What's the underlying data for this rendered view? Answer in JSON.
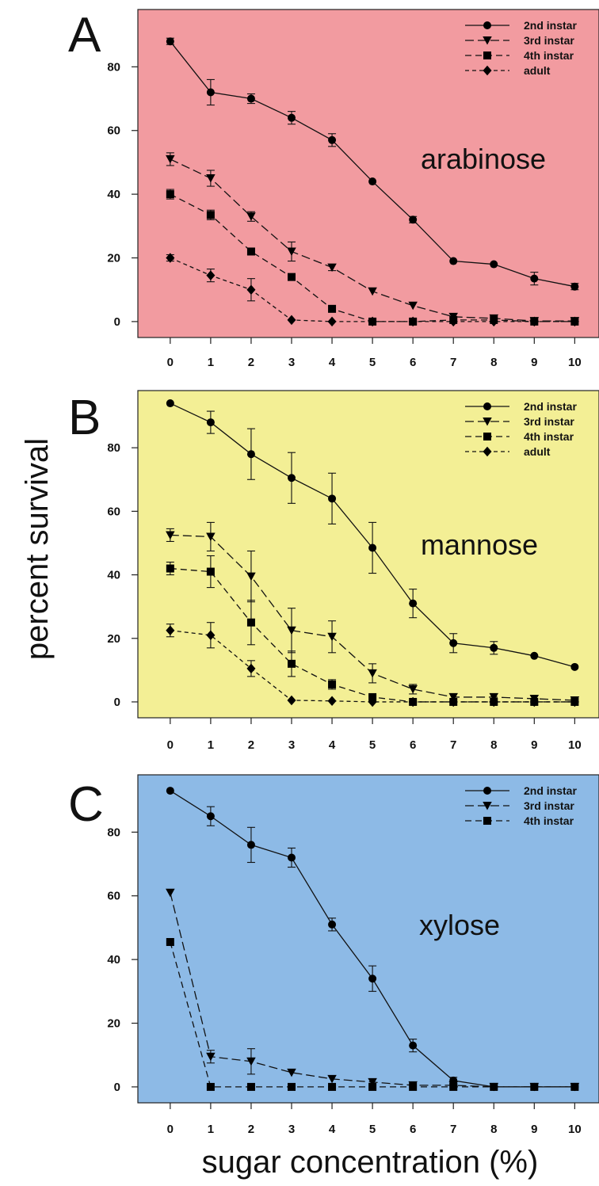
{
  "ylabel": "percent survival",
  "xlabel": "sugar concentration (%)",
  "chart_data": [
    {
      "type": "line",
      "panel": "A",
      "sugar": "arabinose",
      "background": "#f29ba0",
      "x": [
        0,
        1,
        2,
        3,
        4,
        5,
        6,
        7,
        8,
        9,
        10
      ],
      "x_ticks": [
        "0",
        "1",
        "2",
        "3",
        "4",
        "5",
        "6",
        "7",
        "8",
        "9",
        "10"
      ],
      "y_ticks": [
        "0",
        "20",
        "40",
        "60",
        "80"
      ],
      "xlim": [
        -0.8,
        10.6
      ],
      "ylim": [
        -5,
        98
      ],
      "legend_position": "top-right",
      "series": [
        {
          "name": "2nd instar",
          "marker": "circle",
          "dash": "solid",
          "values": [
            88,
            72,
            70,
            64,
            57,
            44,
            32,
            19,
            18,
            13.5,
            11
          ],
          "errors": [
            1,
            4,
            1.5,
            2,
            2,
            0.5,
            1,
            0.5,
            0.5,
            2,
            1
          ]
        },
        {
          "name": "3rd instar",
          "marker": "triangle-down",
          "dash": "long",
          "values": [
            51,
            45,
            33,
            22,
            17,
            9.5,
            5,
            1.5,
            1,
            0.2,
            0.2
          ],
          "errors": [
            2,
            2.5,
            1.5,
            3,
            1,
            0.3,
            0.3,
            0.3,
            0.3,
            0.2,
            0.2
          ]
        },
        {
          "name": "4th instar",
          "marker": "square",
          "dash": "medium",
          "values": [
            40,
            33.5,
            22,
            14,
            4,
            0,
            0,
            0.5,
            0.5,
            0,
            0
          ],
          "errors": [
            1.5,
            1.5,
            1,
            0.5,
            0.5,
            0.2,
            0.2,
            0.2,
            0.2,
            0.2,
            0.2
          ]
        },
        {
          "name": "adult",
          "marker": "diamond",
          "dash": "short",
          "values": [
            20,
            14.5,
            10,
            0.5,
            0,
            0,
            0,
            0,
            0,
            0,
            0
          ],
          "errors": [
            1,
            2,
            3.5,
            0.3,
            0.2,
            0.2,
            0.2,
            0.2,
            0.2,
            0.2,
            0.2
          ]
        }
      ]
    },
    {
      "type": "line",
      "panel": "B",
      "sugar": "mannose",
      "background": "#f3ef95",
      "x": [
        0,
        1,
        2,
        3,
        4,
        5,
        6,
        7,
        8,
        9,
        10
      ],
      "x_ticks": [
        "0",
        "1",
        "2",
        "3",
        "4",
        "5",
        "6",
        "7",
        "8",
        "9",
        "10"
      ],
      "y_ticks": [
        "0",
        "20",
        "40",
        "60",
        "80"
      ],
      "xlim": [
        -0.8,
        10.6
      ],
      "ylim": [
        -5,
        98
      ],
      "legend_position": "top-right",
      "series": [
        {
          "name": "2nd instar",
          "marker": "circle",
          "dash": "solid",
          "values": [
            94,
            88,
            78,
            70.5,
            64,
            48.5,
            31,
            18.5,
            17,
            14.5,
            11
          ],
          "errors": [
            0.5,
            3.5,
            8,
            8,
            8,
            8,
            4.5,
            3,
            2,
            0.5,
            0.5
          ]
        },
        {
          "name": "3rd instar",
          "marker": "triangle-down",
          "dash": "long",
          "values": [
            52.5,
            52,
            39.5,
            22.5,
            20.5,
            9,
            4,
            1.5,
            1.5,
            1,
            0.5
          ],
          "errors": [
            2,
            4.5,
            8,
            7,
            5,
            3,
            1.5,
            0.5,
            0.5,
            0.5,
            0.3
          ]
        },
        {
          "name": "4th instar",
          "marker": "square",
          "dash": "medium",
          "values": [
            42,
            41,
            25,
            12,
            5.5,
            1.5,
            0,
            0,
            0,
            0,
            0
          ],
          "errors": [
            2,
            5,
            7,
            4,
            1.5,
            0.5,
            0.3,
            0.3,
            0.3,
            0.3,
            0.3
          ]
        },
        {
          "name": "adult",
          "marker": "diamond",
          "dash": "short",
          "values": [
            22.5,
            21,
            10.5,
            0.5,
            0.3,
            0,
            0,
            0,
            0,
            0,
            0
          ],
          "errors": [
            2,
            4,
            2.5,
            0.3,
            0.3,
            0.3,
            0.3,
            0.3,
            0.3,
            0.3,
            0.3
          ]
        }
      ]
    },
    {
      "type": "line",
      "panel": "C",
      "sugar": "xylose",
      "background": "#8dbae6",
      "x": [
        0,
        1,
        2,
        3,
        4,
        5,
        6,
        7,
        8,
        9,
        10
      ],
      "x_ticks": [
        "0",
        "1",
        "2",
        "3",
        "4",
        "5",
        "6",
        "7",
        "8",
        "9",
        "10"
      ],
      "y_ticks": [
        "0",
        "20",
        "40",
        "60",
        "80"
      ],
      "xlim": [
        -0.8,
        10.6
      ],
      "ylim": [
        -5,
        98
      ],
      "legend_position": "top-right",
      "series": [
        {
          "name": "2nd instar",
          "marker": "circle",
          "dash": "solid",
          "values": [
            93,
            85,
            76,
            72,
            51,
            34,
            13,
            2,
            0,
            0,
            0
          ],
          "errors": [
            0.5,
            3,
            5.5,
            3,
            2,
            4,
            2,
            1,
            0.3,
            0.3,
            0.3
          ]
        },
        {
          "name": "3rd instar",
          "marker": "triangle-down",
          "dash": "long",
          "values": [
            61,
            9.5,
            8,
            4.5,
            2.5,
            1.5,
            0.5,
            0.5,
            0,
            0,
            0
          ],
          "errors": [
            0.5,
            2,
            4,
            0.5,
            0.5,
            0.5,
            0.3,
            0.3,
            0.3,
            0.3,
            0.3
          ]
        },
        {
          "name": "4th instar",
          "marker": "square",
          "dash": "medium",
          "values": [
            45.5,
            0,
            0,
            0,
            0,
            0,
            0,
            0,
            0,
            0,
            0
          ],
          "errors": [
            0.5,
            0.3,
            0.3,
            0.3,
            0.3,
            0.3,
            0.3,
            0.3,
            0.3,
            0.3,
            0.3
          ]
        }
      ]
    }
  ]
}
